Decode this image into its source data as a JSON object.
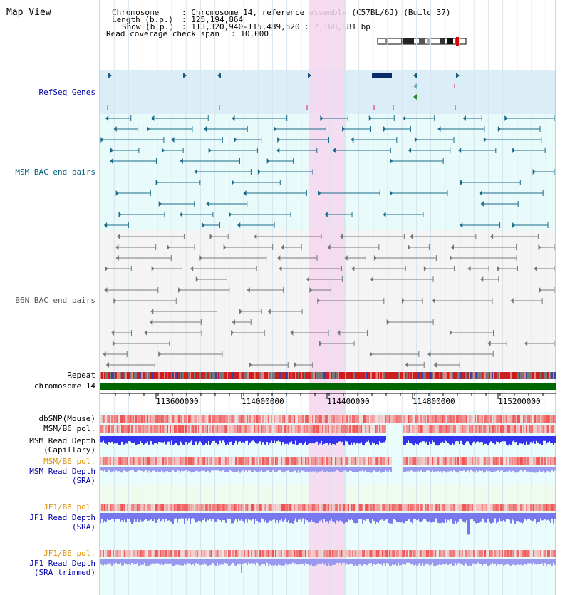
{
  "view_title": "Map View",
  "header": {
    "chromosome_label": "Chromosome",
    "chromosome_value": ": Chromosome 14, reference assembly (C57BL/6J) (Build 37)",
    "length_label": "Length (b.p.)",
    "length_value": ": 125,194,864",
    "show_label": "Show (b.p.)",
    "show_value": ": 113,320,940-115,489,520 : 2,168,581 bp",
    "span_label": "Read coverage check span",
    "span_value": ": 10,000"
  },
  "tracks": {
    "refseq": "RefSeq Genes",
    "msm_bac": "MSM BAC end pairs",
    "b6n_bac": "B6N BAC end pairs",
    "repeat": "Repeat",
    "chromosome": "chromosome 14",
    "dbsnp": "dbSNP(Mouse)",
    "msm_b6_pol_1": "MSM/B6 pol.",
    "msm_depth_cap_1": "MSM Read Depth",
    "msm_depth_cap_2": "(Capillary)",
    "msm_b6_pol_2": "MSM/B6 pol.",
    "msm_depth_sra_1": "MSM Read Depth",
    "msm_depth_sra_2": "(SRA)",
    "jf1_b6_pol_1": "JF1/B6 pol.",
    "jf1_depth_sra_1": "JF1 Read Depth",
    "jf1_depth_sra_2": "(SRA)",
    "jf1_b6_pol_2": "JF1/B6 pol.",
    "jf1_depth_trim_1": "JF1 Read Depth",
    "jf1_depth_trim_2": "(SRA trimmed)"
  },
  "axis_ticks": [
    "113600000",
    "114000000",
    "114400000",
    "114800000",
    "115200000"
  ],
  "colors": {
    "refseq_bg": "#dbeef8",
    "msm_bg": "#e8fafa",
    "b6n_bg": "#f4f4f4",
    "highlight": "#f6d6ef",
    "chromosome_bar": "#006600",
    "msm_feature": "#1a6a8a",
    "b6n_feature": "#777777",
    "depth_blue": "#3333ee",
    "depth_light": "#9999f0",
    "pol_red": "#e84040",
    "label_blue": "#0000aa",
    "label_orange": "#e09000",
    "label_teal": "#006080"
  }
}
